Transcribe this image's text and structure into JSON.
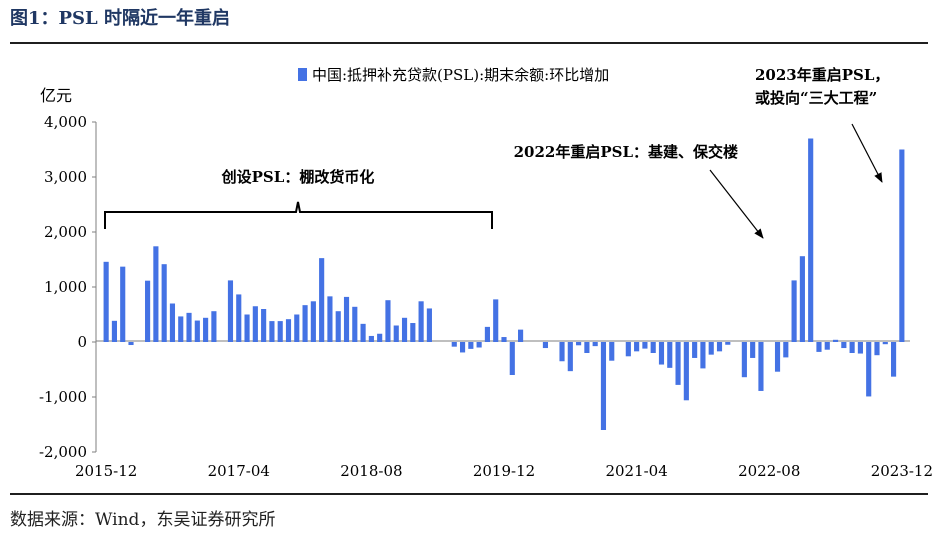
{
  "figure_title": "图1：PSL 时隔近一年重启",
  "source_note": "数据来源：Wind，东吴证券研究所",
  "colors": {
    "bar": "#4472e4",
    "text": "#000000",
    "title": "#1f3763"
  },
  "chart_data": {
    "type": "bar",
    "unit_label": "亿元",
    "legend": "中国:抵押补充贷款(PSL):期末余额:环比增加",
    "legend_position": "top",
    "ylim": [
      -2000,
      4000
    ],
    "yticks": [
      "4,000",
      "3,000",
      "2,000",
      "1,000",
      "0",
      "-1,000",
      "-2,000"
    ],
    "xtick_labels": [
      "2015-12",
      "2017-04",
      "2018-08",
      "2019-12",
      "2021-04",
      "2022-08",
      "2023-12"
    ],
    "grid": false,
    "annotations": {
      "shantytown": "创设PSL：棚改货币化",
      "infra_2022": "2022年重启PSL：基建、保交楼",
      "restart_2023_line1": "2023年重启PSL，",
      "restart_2023_line2": "或投向“三大工程”"
    },
    "series": [
      {
        "categories": [
          "2015-12",
          "2016-01",
          "2016-02",
          "2016-03",
          "2016-04",
          "2016-05",
          "2016-06",
          "2016-07",
          "2016-08",
          "2016-09",
          "2016-10",
          "2016-11",
          "2016-12",
          "2017-01",
          "2017-02",
          "2017-03",
          "2017-04",
          "2017-05",
          "2017-06",
          "2017-07",
          "2017-08",
          "2017-09",
          "2017-10",
          "2017-11",
          "2017-12",
          "2018-01",
          "2018-02",
          "2018-03",
          "2018-04",
          "2018-05",
          "2018-06",
          "2018-07",
          "2018-08",
          "2018-09",
          "2018-10",
          "2018-11",
          "2018-12",
          "2019-01",
          "2019-02",
          "2019-03",
          "2019-04",
          "2019-05",
          "2019-06",
          "2019-07",
          "2019-08",
          "2019-09",
          "2019-10",
          "2019-11",
          "2019-12",
          "2020-01",
          "2020-02",
          "2020-03",
          "2020-04",
          "2020-05",
          "2020-06",
          "2020-07",
          "2020-08",
          "2020-09",
          "2020-10",
          "2020-11",
          "2020-12",
          "2021-01",
          "2021-02",
          "2021-03",
          "2021-04",
          "2021-05",
          "2021-06",
          "2021-07",
          "2021-08",
          "2021-09",
          "2021-10",
          "2021-11",
          "2021-12",
          "2022-01",
          "2022-02",
          "2022-03",
          "2022-04",
          "2022-05",
          "2022-06",
          "2022-07",
          "2022-08",
          "2022-09",
          "2022-10",
          "2022-11",
          "2022-12",
          "2023-01",
          "2023-02",
          "2023-03",
          "2023-04",
          "2023-05",
          "2023-06",
          "2023-07",
          "2023-08",
          "2023-09",
          "2023-10",
          "2023-11",
          "2023-12"
        ],
        "values": [
          1458,
          385,
          1370,
          -55,
          0,
          1115,
          1740,
          1415,
          700,
          465,
          530,
          390,
          440,
          560,
          0,
          1120,
          865,
          500,
          650,
          600,
          380,
          380,
          415,
          500,
          670,
          740,
          1525,
          830,
          560,
          820,
          640,
          330,
          110,
          150,
          760,
          300,
          440,
          345,
          740,
          610,
          0,
          0,
          -85,
          -190,
          -125,
          -100,
          275,
          775,
          90,
          -600,
          225,
          0,
          0,
          -110,
          0,
          -350,
          -530,
          -60,
          -200,
          -75,
          -1600,
          -340,
          0,
          -260,
          -170,
          -120,
          -200,
          -410,
          -470,
          -780,
          -1060,
          -290,
          -480,
          -230,
          -170,
          -50,
          0,
          -640,
          -290,
          -890,
          0,
          -540,
          -280,
          1120,
          1560,
          3700,
          -180,
          -140,
          40,
          -110,
          -200,
          -210,
          -990,
          -240,
          -40,
          -630,
          3500
        ]
      }
    ]
  }
}
